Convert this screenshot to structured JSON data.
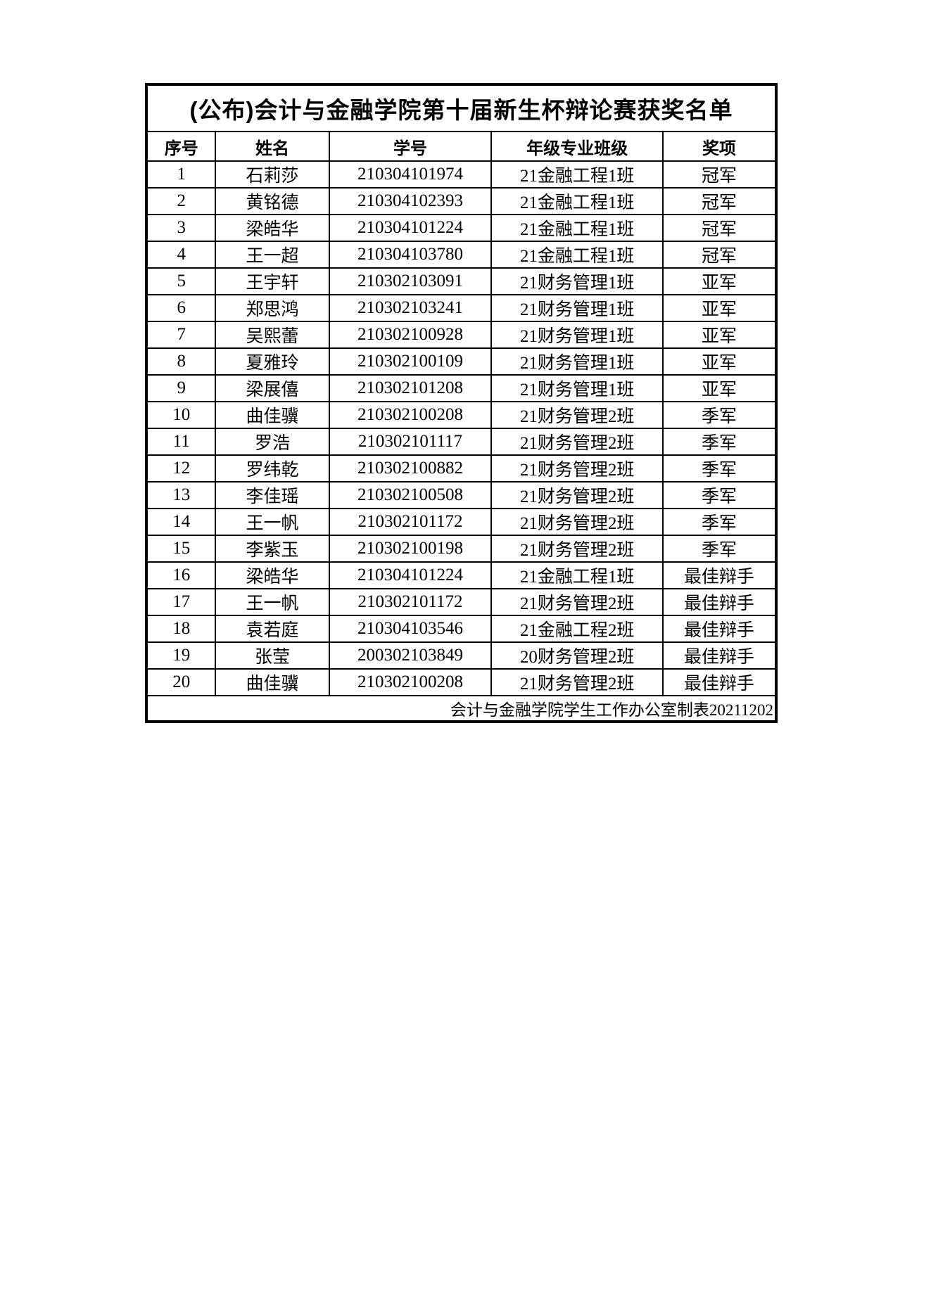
{
  "document": {
    "title": "(公布)会计与金融学院第十届新生杯辩论赛获奖名单",
    "footer": "会计与金融学院学生工作办公室制表20211202",
    "table": {
      "headers": [
        "序号",
        "姓名",
        "学号",
        "年级专业班级",
        "奖项"
      ],
      "rows": [
        [
          "1",
          "石莉莎",
          "210304101974",
          "21金融工程1班",
          "冠军"
        ],
        [
          "2",
          "黄铭德",
          "210304102393",
          "21金融工程1班",
          "冠军"
        ],
        [
          "3",
          "梁皓华",
          "210304101224",
          "21金融工程1班",
          "冠军"
        ],
        [
          "4",
          "王一超",
          "210304103780",
          "21金融工程1班",
          "冠军"
        ],
        [
          "5",
          "王宇轩",
          "210302103091",
          "21财务管理1班",
          "亚军"
        ],
        [
          "6",
          "郑思鸿",
          "210302103241",
          "21财务管理1班",
          "亚军"
        ],
        [
          "7",
          "吴熙蕾",
          "210302100928",
          "21财务管理1班",
          "亚军"
        ],
        [
          "8",
          "夏雅玲",
          "210302100109",
          "21财务管理1班",
          "亚军"
        ],
        [
          "9",
          "梁展僖",
          "210302101208",
          "21财务管理1班",
          "亚军"
        ],
        [
          "10",
          "曲佳骥",
          "210302100208",
          "21财务管理2班",
          "季军"
        ],
        [
          "11",
          "罗浩",
          "210302101117",
          "21财务管理2班",
          "季军"
        ],
        [
          "12",
          "罗纬乾",
          "210302100882",
          "21财务管理2班",
          "季军"
        ],
        [
          "13",
          "李佳瑶",
          "210302100508",
          "21财务管理2班",
          "季军"
        ],
        [
          "14",
          "王一帆",
          "210302101172",
          "21财务管理2班",
          "季军"
        ],
        [
          "15",
          "李紫玉",
          "210302100198",
          "21财务管理2班",
          "季军"
        ],
        [
          "16",
          "梁皓华",
          "210304101224",
          "21金融工程1班",
          "最佳辩手"
        ],
        [
          "17",
          "王一帆",
          "210302101172",
          "21财务管理2班",
          "最佳辩手"
        ],
        [
          "18",
          "袁若庭",
          "210304103546",
          "21金融工程2班",
          "最佳辩手"
        ],
        [
          "19",
          "张莹",
          "200302103849",
          "20财务管理2班",
          "最佳辩手"
        ],
        [
          "20",
          "曲佳骥",
          "210302100208",
          "21财务管理2班",
          "最佳辩手"
        ]
      ]
    }
  },
  "colors": {
    "border": "#000000",
    "text": "#000000",
    "background": "#ffffff"
  }
}
